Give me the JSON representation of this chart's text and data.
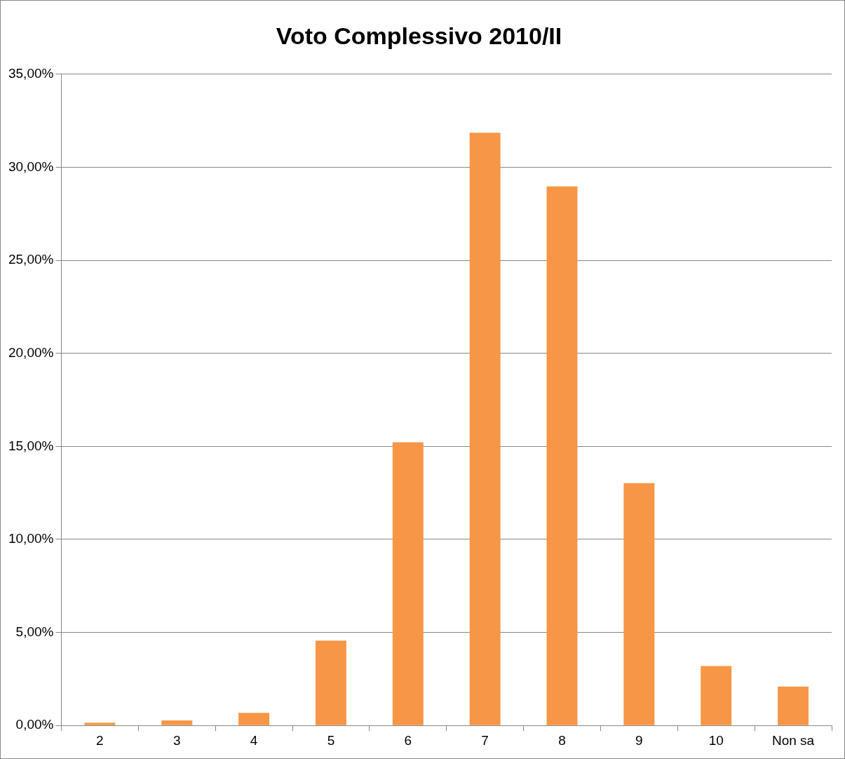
{
  "chart_data": {
    "type": "bar",
    "title": "Voto Complessivo 2010/II",
    "categories": [
      "2",
      "3",
      "4",
      "5",
      "6",
      "7",
      "8",
      "9",
      "10",
      "Non sa"
    ],
    "values": [
      0.15,
      0.27,
      0.68,
      4.56,
      15.22,
      31.85,
      28.97,
      13.02,
      3.19,
      2.09
    ],
    "color": "#f79646",
    "ylim": [
      0,
      35
    ],
    "yticks": [
      {
        "value": 0,
        "label": "0,00%"
      },
      {
        "value": 5,
        "label": "5,00%"
      },
      {
        "value": 10,
        "label": "10,00%"
      },
      {
        "value": 15,
        "label": "15,00%"
      },
      {
        "value": 20,
        "label": "20,00%"
      },
      {
        "value": 25,
        "label": "25,00%"
      },
      {
        "value": 30,
        "label": "30,00%"
      },
      {
        "value": 35,
        "label": "35,00%"
      }
    ],
    "grid": "y",
    "legend": false
  }
}
